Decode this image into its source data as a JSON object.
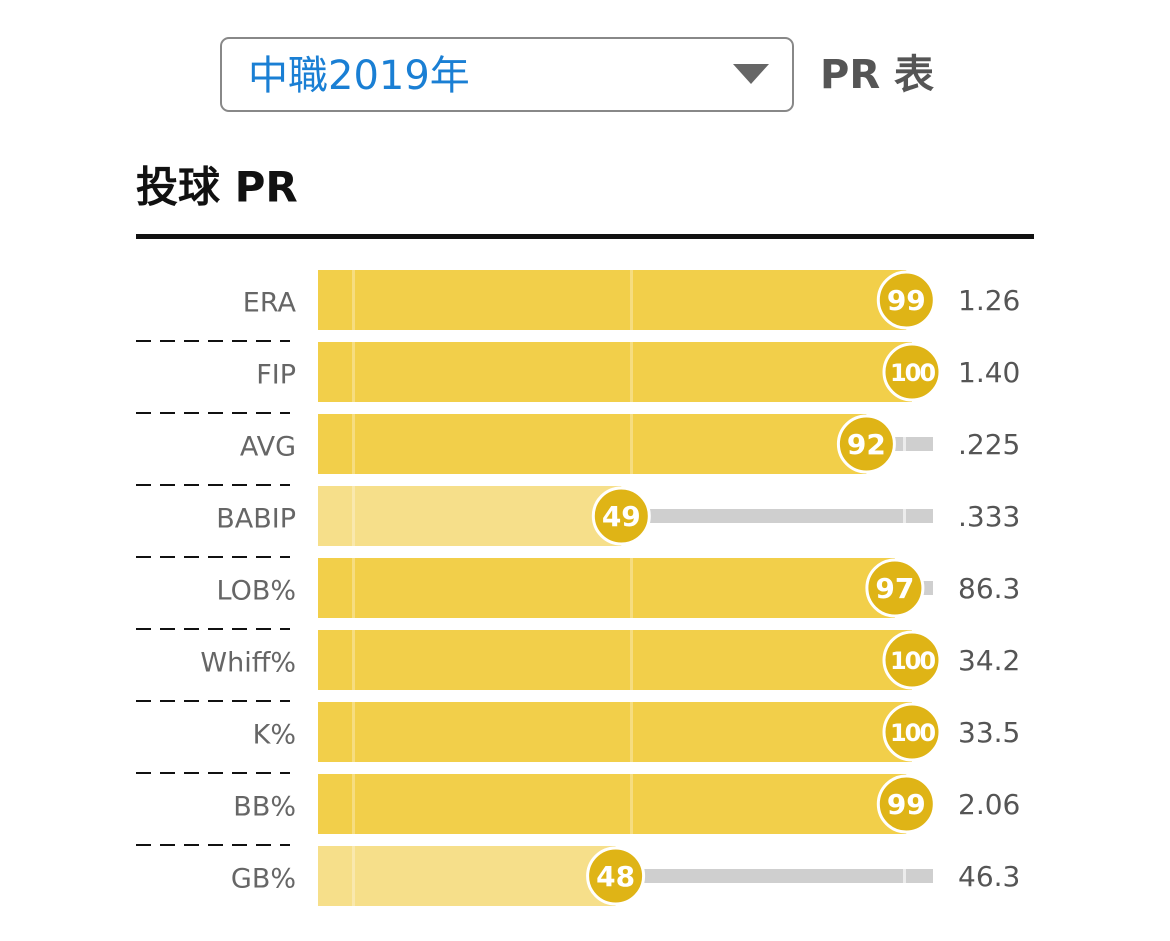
{
  "dropdown": {
    "selected": "中職2019年"
  },
  "heading": "PR 表",
  "section_title": "投球 PR",
  "chart_data": {
    "type": "bar",
    "categories": [
      "ERA",
      "FIP",
      "AVG",
      "BABIP",
      "LOB%",
      "Whiff%",
      "K%",
      "BB%",
      "GB%"
    ],
    "values": [
      99,
      100,
      92,
      49,
      97,
      100,
      100,
      99,
      48
    ],
    "stats": [
      "1.26",
      "1.40",
      ".225",
      ".333",
      "86.3",
      "34.2",
      "33.5",
      "2.06",
      "46.3"
    ],
    "xlim": [
      0,
      100
    ],
    "color": "#f2cf4a",
    "low_color": "#f6df8a",
    "circle_color": "#dfb416",
    "track_color": "#cfcfcf"
  }
}
